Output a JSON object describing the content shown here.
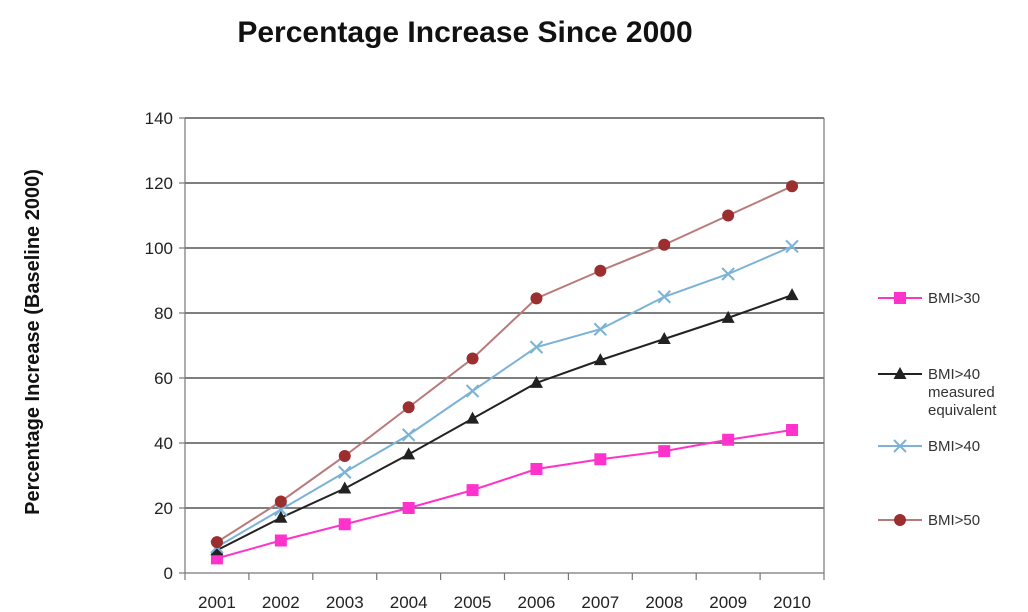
{
  "chart_data": {
    "type": "line",
    "title": "Percentage Increase Since 2000",
    "xlabel": "",
    "ylabel": "Percentage Increase (Baseline 2000)",
    "x": [
      "2001",
      "2002",
      "2003",
      "2004",
      "2005",
      "2006",
      "2007",
      "2008",
      "2009",
      "2010"
    ],
    "ylim": [
      0,
      140
    ],
    "yticks": [
      0,
      20,
      40,
      60,
      80,
      100,
      120,
      140
    ],
    "grid": true,
    "legend_position": "right",
    "series": [
      {
        "name": "BMI>30",
        "values": [
          4.5,
          10,
          15,
          20,
          25.5,
          32,
          35,
          37.5,
          41,
          44
        ],
        "color": "#ff33cc",
        "marker": "square"
      },
      {
        "name": "BMI>40 measured equivalent",
        "legend_lines": [
          "BMI>40",
          "measured",
          "equivalent"
        ],
        "values": [
          7,
          17,
          26,
          36.5,
          47.5,
          58.5,
          65.5,
          72,
          78.5,
          85.5
        ],
        "color": "#222222",
        "marker": "triangle"
      },
      {
        "name": "BMI>40",
        "values": [
          8,
          19.5,
          31,
          42.5,
          56,
          69.5,
          75,
          85,
          92,
          100.5
        ],
        "color": "#7bb3d6",
        "marker": "x"
      },
      {
        "name": "BMI>50",
        "values": [
          9.5,
          22,
          36,
          51,
          66,
          84.5,
          93,
          101,
          110,
          119
        ],
        "color": "#9b2f2f",
        "line_color": "#b97a7a",
        "marker": "circle"
      }
    ]
  }
}
